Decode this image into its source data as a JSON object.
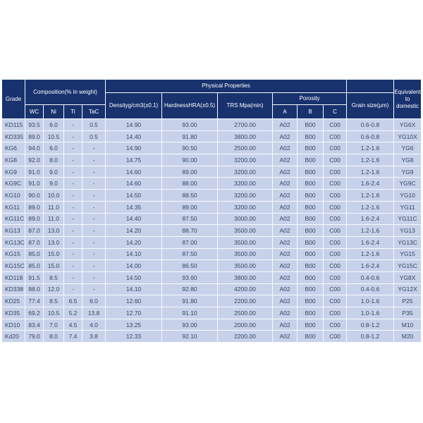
{
  "colors": {
    "header_bg": "#18326e",
    "header_text": "#ffffff",
    "row_bg": "#c7d1ea",
    "cell_text": "#37455e",
    "grid_line": "#f8fafd",
    "page_bg": "#ffffff"
  },
  "table": {
    "header": {
      "grade": "Grade",
      "composition": "Composition(% in weight)",
      "composition_cols": [
        "WC",
        "Ni",
        "Ti",
        "TaC"
      ],
      "physical": "Physical Properties",
      "density": "Densityg/cm3(±0.1)",
      "hardness": "HardnessHRA(±0.5)",
      "trs": "TRS Mpa(min)",
      "porosity": "Porosity",
      "porosity_cols": [
        "A",
        "B",
        "C"
      ],
      "grain": "Grain size(μm)",
      "equivalent": "Equivalent to domestic"
    },
    "rows": [
      [
        "KD115",
        "93.5",
        "6.0",
        "-",
        "0.5",
        "14.90",
        "93.00",
        "2700.00",
        "A02",
        "B00",
        "C00",
        "0.6-0.8",
        "YG6X"
      ],
      [
        "KD335",
        "89.0",
        "10.5",
        "-",
        "0.5",
        "14.40",
        "91.80",
        "3800.00",
        "A02",
        "B00",
        "C00",
        "0.6-0.8",
        "YG10X"
      ],
      [
        "KG6",
        "94.0",
        "6.0",
        "-",
        "-",
        "14.90",
        "90.50",
        "2500.00",
        "A02",
        "B00",
        "C00",
        "1.2-1.6",
        "YG6"
      ],
      [
        "KG8",
        "92.0",
        "8.0",
        "-",
        "-",
        "14.75",
        "90.00",
        "3200.00",
        "A02",
        "B00",
        "C00",
        "1.2-1.6",
        "YG8"
      ],
      [
        "KG9",
        "91.0",
        "9.0",
        "-",
        "-",
        "14.60",
        "89.00",
        "3200.00",
        "A02",
        "B00",
        "C00",
        "1.2-1.6",
        "YG9"
      ],
      [
        "KG9C",
        "91.0",
        "9.0",
        "-",
        "-",
        "14.60",
        "88.00",
        "3200.00",
        "A02",
        "B00",
        "C00",
        "1.6-2.4",
        "YG9C"
      ],
      [
        "KG10",
        "90.0",
        "10.0",
        "-",
        "-",
        "14.50",
        "88.50",
        "3200.00",
        "A02",
        "B00",
        "C00",
        "1.2-1.6",
        "YG10"
      ],
      [
        "KG11",
        "89.0",
        "11.0",
        "-",
        "-",
        "14.35",
        "89.00",
        "3200.00",
        "A02",
        "B00",
        "C00",
        "1.2-1.6",
        "YG11"
      ],
      [
        "KG11C",
        "89.0",
        "11.0",
        "-",
        "-",
        "14.40",
        "87.50",
        "3000.00",
        "A02",
        "B00",
        "C00",
        "1.6-2.4",
        "YG11C"
      ],
      [
        "KG13",
        "87.0",
        "13.0",
        "-",
        "-",
        "14.20",
        "88.70",
        "3500.00",
        "A02",
        "B00",
        "C00",
        "1.2-1.6",
        "YG13"
      ],
      [
        "KG13C",
        "87.0",
        "13.0",
        "-",
        "-",
        "14.20",
        "87.00",
        "3500.00",
        "A02",
        "B00",
        "C00",
        "1.6-2.4",
        "YG13C"
      ],
      [
        "KG15",
        "85.0",
        "15.0",
        "-",
        "-",
        "14.10",
        "87.50",
        "3500.00",
        "A02",
        "B00",
        "C00",
        "1.2-1.6",
        "YG15"
      ],
      [
        "KG15C",
        "85.0",
        "15.0",
        "-",
        "-",
        "14.00",
        "86.50",
        "3500.00",
        "A02",
        "B00",
        "C00",
        "1.6-2.4",
        "YG15C"
      ],
      [
        "KD118",
        "91.5",
        "8.5",
        "-",
        "-",
        "14.50",
        "93.60",
        "3800.00",
        "A02",
        "B00",
        "C00",
        "0.4-0.6",
        "YG8X"
      ],
      [
        "KD338",
        "88.0",
        "12.0",
        "-",
        "-",
        "14.10",
        "92.80",
        "4200.00",
        "A02",
        "B00",
        "C00",
        "0.4-0.6",
        "YG12X"
      ],
      [
        "KD25",
        "77.4",
        "8.5",
        "6.5",
        "6.0",
        "12.60",
        "91.80",
        "2200.00",
        "A02",
        "B00",
        "C00",
        "1.0-1.6",
        "P25"
      ],
      [
        "KD35",
        "69.2",
        "10.5",
        "5.2",
        "13.8",
        "12.70",
        "91.10",
        "2500.00",
        "A02",
        "B00",
        "C00",
        "1.0-1.6",
        "P35"
      ],
      [
        "KD10",
        "83.4",
        "7.0",
        "4.5",
        "4.0",
        "13.25",
        "93.00",
        "2000.00",
        "A02",
        "B00",
        "C00",
        "0.8-1.2",
        "M10"
      ],
      [
        "Kd20",
        "79.0",
        "8.0",
        "7.4",
        "3.8",
        "12.33",
        "92.10",
        "2200.00",
        "A02",
        "B00",
        "C00",
        "0.8-1.2",
        "M20"
      ]
    ]
  }
}
